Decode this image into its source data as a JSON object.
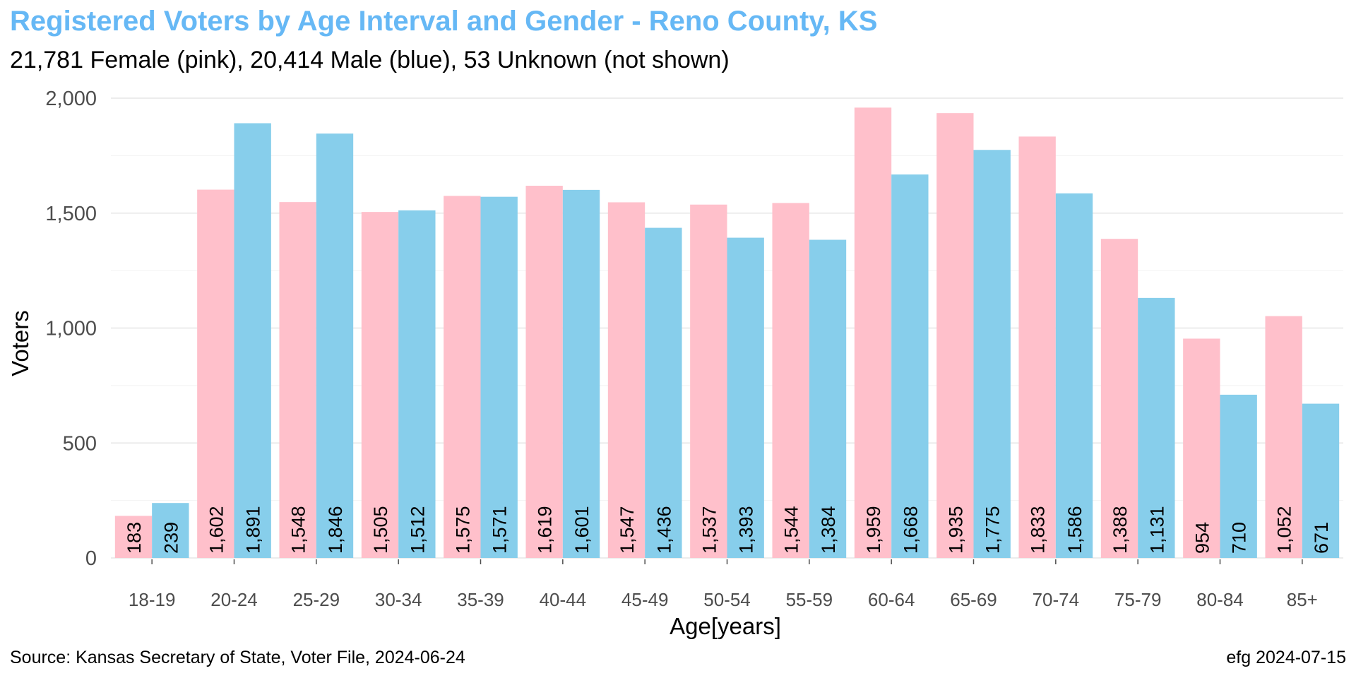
{
  "chart_data": {
    "type": "bar",
    "title": "Registered Voters by Age Interval and Gender - Reno County, KS",
    "subtitle": "21,781 Female (pink),  20,414 Male (blue),  53 Unknown (not shown)",
    "xlabel": "Age[years]",
    "ylabel": "Voters",
    "ylim": [
      0,
      2000
    ],
    "yticks": [
      0,
      500,
      1000,
      1500,
      2000
    ],
    "ytick_labels": [
      "0",
      "500",
      "1,000",
      "1,500",
      "2,000"
    ],
    "grid": true,
    "categories": [
      "18-19",
      "20-24",
      "25-29",
      "30-34",
      "35-39",
      "40-44",
      "45-49",
      "50-54",
      "55-59",
      "60-64",
      "65-69",
      "70-74",
      "75-79",
      "80-84",
      "85+"
    ],
    "series": [
      {
        "name": "Female",
        "color": "#ffc0cb",
        "values": [
          183,
          1602,
          1548,
          1505,
          1575,
          1619,
          1547,
          1537,
          1544,
          1959,
          1935,
          1833,
          1388,
          954,
          1052
        ],
        "labels": [
          "183",
          "1,602",
          "1,548",
          "1,505",
          "1,575",
          "1,619",
          "1,547",
          "1,537",
          "1,544",
          "1,959",
          "1,935",
          "1,833",
          "1,388",
          "954",
          "1,052"
        ]
      },
      {
        "name": "Male",
        "color": "#87ceeb",
        "values": [
          239,
          1891,
          1846,
          1512,
          1571,
          1601,
          1436,
          1393,
          1384,
          1668,
          1775,
          1586,
          1131,
          710,
          671
        ],
        "labels": [
          "239",
          "1,891",
          "1,846",
          "1,512",
          "1,571",
          "1,601",
          "1,436",
          "1,393",
          "1,384",
          "1,668",
          "1,775",
          "1,586",
          "1,131",
          "710",
          "671"
        ]
      }
    ]
  },
  "footer": {
    "source": "Source: Kansas Secretary of State, Voter File, 2024-06-24",
    "credit": "efg 2024-07-15"
  }
}
